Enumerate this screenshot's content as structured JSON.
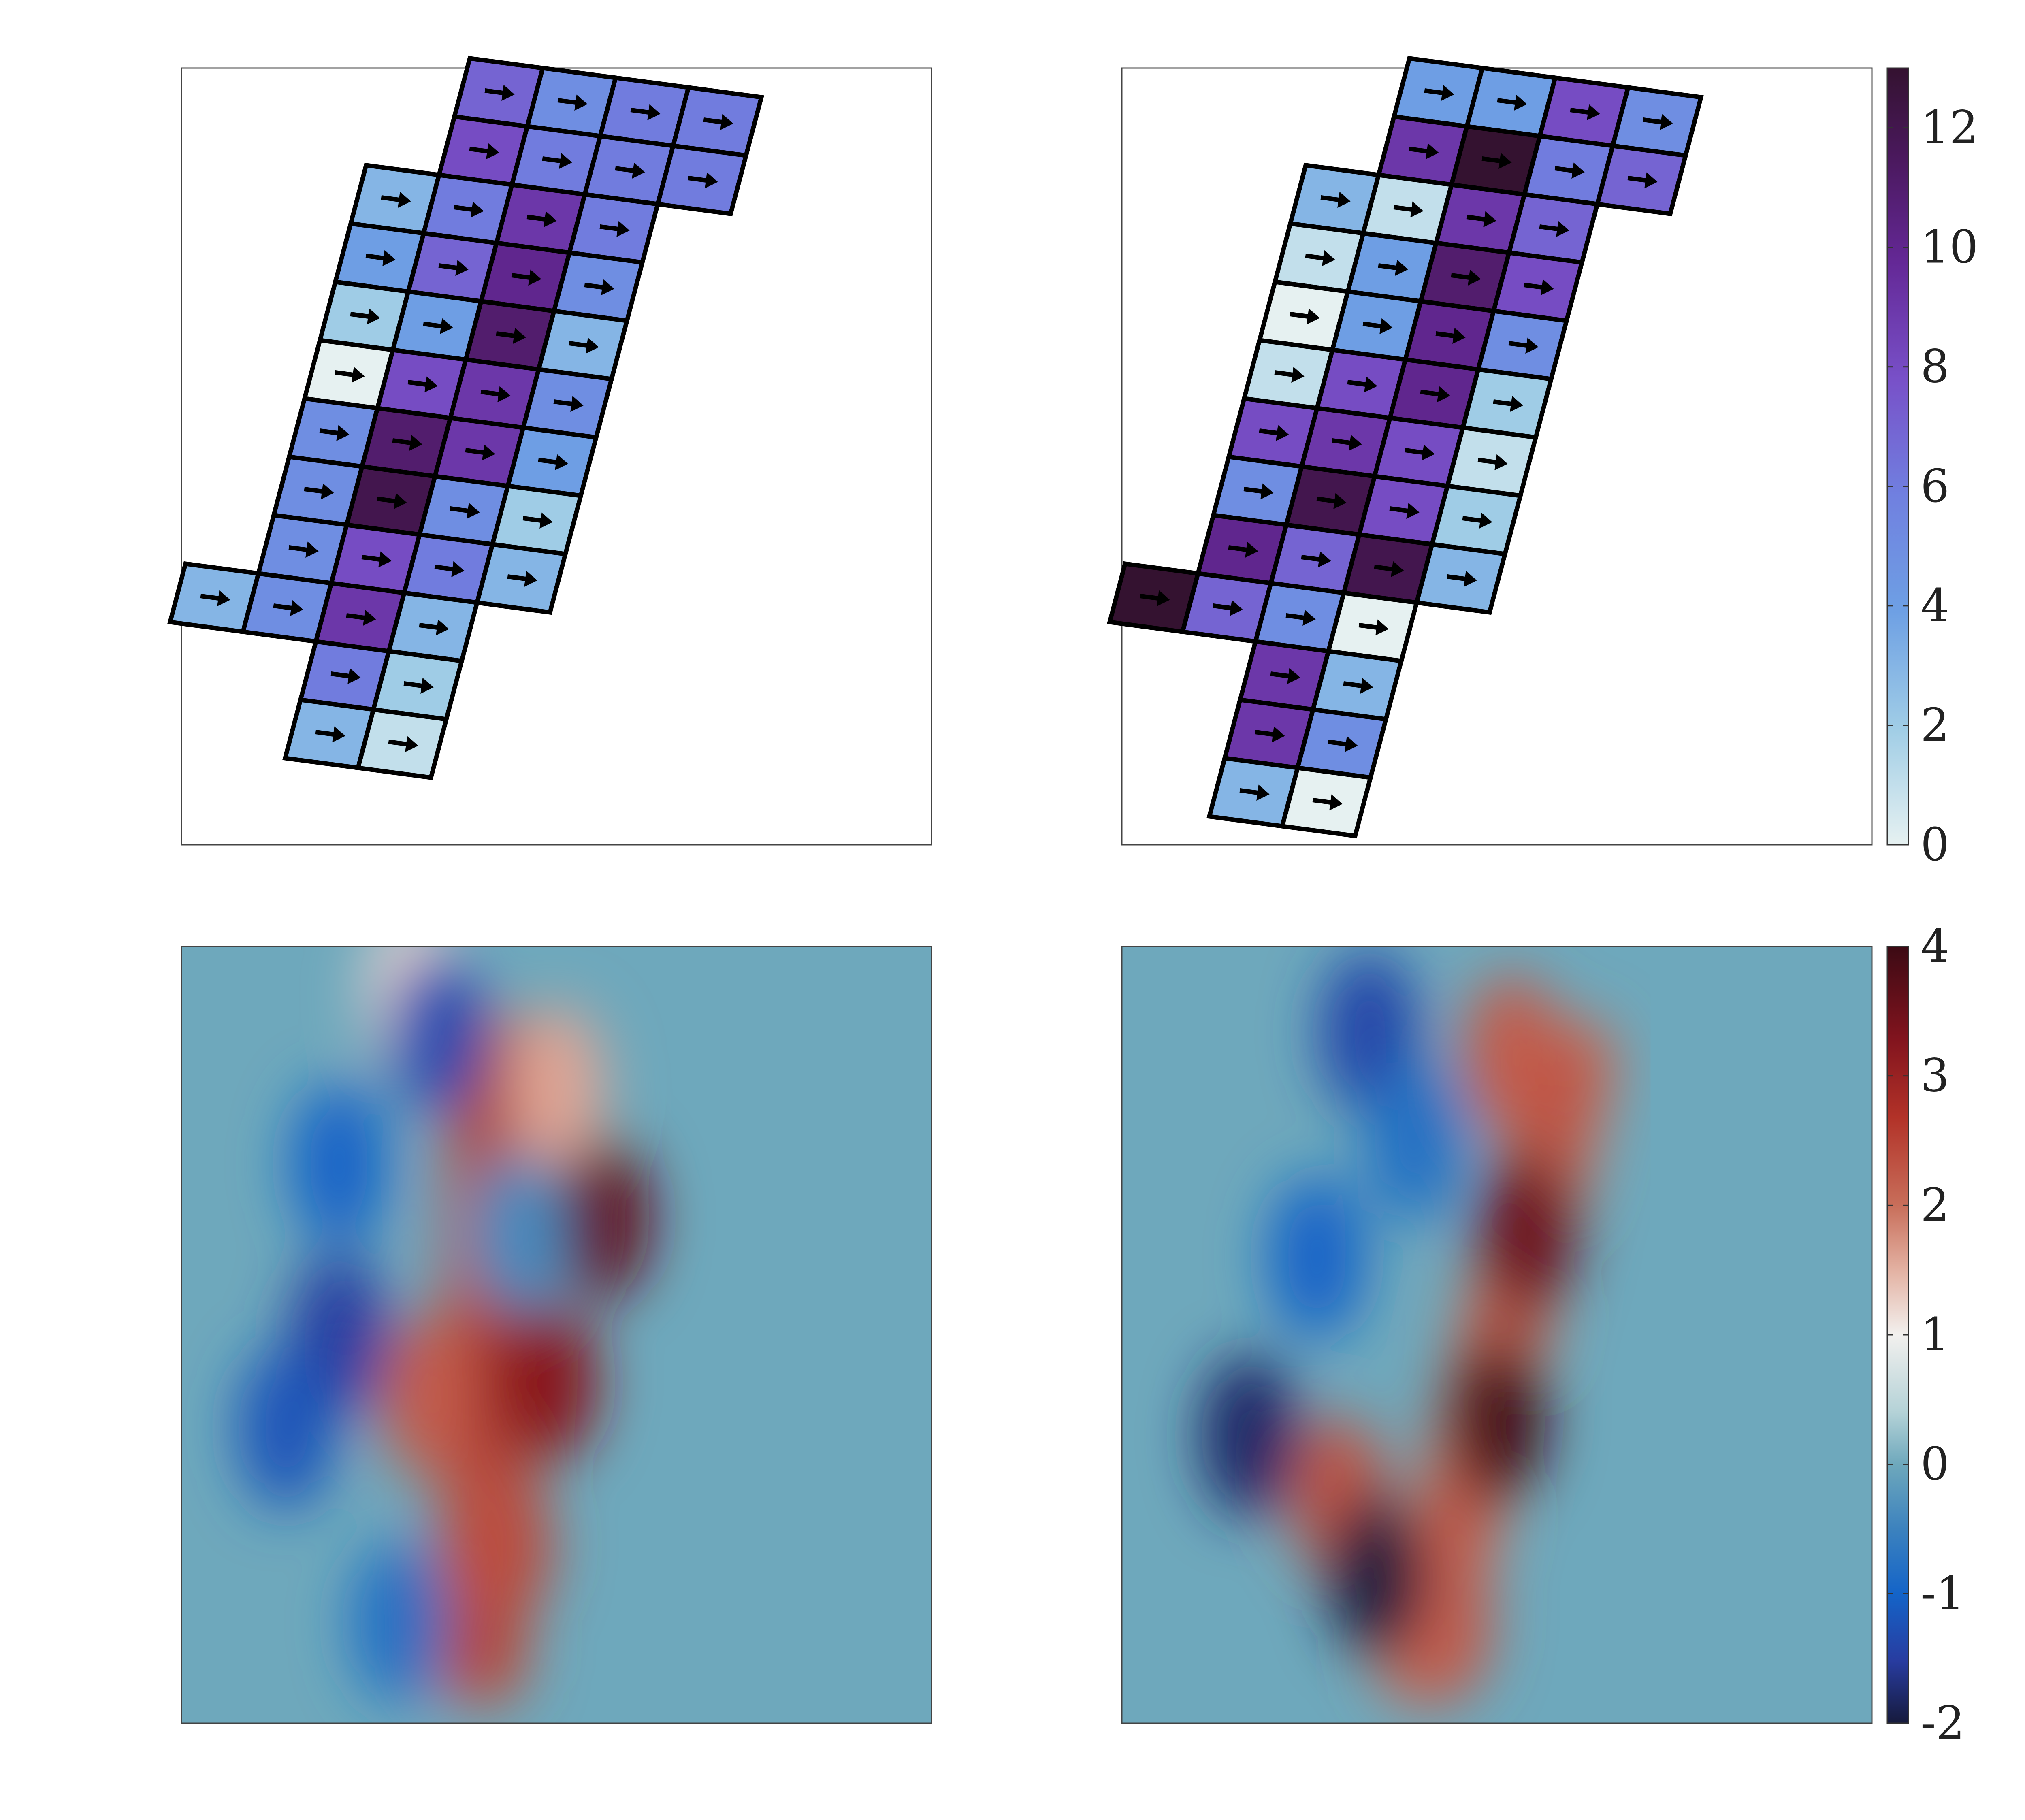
{
  "chart_data": [
    {
      "type": "heatmap",
      "grid": "tilted-cell-map",
      "colormap": "dense",
      "clim": [
        0,
        13
      ],
      "cell_marker": "arrow-right-icon",
      "rows": [
        [
          null,
          null,
          7,
          5,
          6,
          6
        ],
        [
          null,
          null,
          8,
          6,
          6,
          6
        ],
        [
          null,
          3,
          6,
          9,
          6
        ],
        [
          null,
          4,
          7,
          10,
          5
        ],
        [
          null,
          2,
          4,
          11,
          3
        ],
        [
          null,
          0,
          8,
          9,
          5
        ],
        [
          null,
          5,
          11,
          9,
          4
        ],
        [
          null,
          5,
          12,
          5,
          2
        ],
        [
          null,
          5,
          8,
          6,
          3
        ],
        [
          3,
          5,
          9,
          3
        ],
        [
          null,
          null,
          6,
          2
        ],
        [
          null,
          null,
          3,
          1
        ]
      ]
    },
    {
      "type": "heatmap",
      "grid": "tilted-cell-map",
      "colormap": "dense",
      "clim": [
        0,
        13
      ],
      "cell_marker": "arrow-right-icon",
      "rows": [
        [
          null,
          null,
          4,
          4,
          8,
          5
        ],
        [
          null,
          null,
          9,
          13,
          6,
          7
        ],
        [
          null,
          3,
          1,
          9,
          7
        ],
        [
          null,
          1,
          4,
          11,
          8
        ],
        [
          null,
          0,
          4,
          10,
          5
        ],
        [
          null,
          1,
          8,
          10,
          2
        ],
        [
          null,
          8,
          9,
          8,
          1
        ],
        [
          null,
          5,
          12,
          8,
          2
        ],
        [
          null,
          10,
          7,
          12,
          3
        ],
        [
          13,
          7,
          5,
          0
        ],
        [
          null,
          null,
          9,
          3
        ],
        [
          null,
          null,
          9,
          5
        ],
        [
          null,
          null,
          3,
          0
        ]
      ],
      "colorbar": {
        "ticks": [
          0,
          2,
          4,
          6,
          8,
          10,
          12
        ],
        "range": [
          0,
          13
        ]
      }
    },
    {
      "type": "heatmap",
      "field": "contour",
      "colormap": "balance",
      "clim": [
        -2,
        4
      ],
      "background_value": 0,
      "features": [
        {
          "kind": "ridge",
          "from": [
            0.42,
            0.15
          ],
          "to": [
            0.4,
            0.92
          ],
          "value": 2.3
        },
        {
          "kind": "blob",
          "at": [
            0.56,
            0.35
          ],
          "value": 3.6
        },
        {
          "kind": "blob",
          "at": [
            0.49,
            0.56
          ],
          "value": 3.2
        },
        {
          "kind": "blob",
          "at": [
            0.31,
            0.06
          ],
          "value": 1.2
        },
        {
          "kind": "blob",
          "at": [
            0.33,
            0.58
          ],
          "value": 2.2
        },
        {
          "kind": "blob",
          "at": [
            0.43,
            0.77
          ],
          "value": 2.4
        },
        {
          "kind": "blob",
          "at": [
            0.5,
            0.18
          ],
          "value": 1.6
        },
        {
          "kind": "blob",
          "at": [
            0.34,
            0.11
          ],
          "value": -1.3
        },
        {
          "kind": "blob",
          "at": [
            0.21,
            0.28
          ],
          "value": -1.0
        },
        {
          "kind": "blob",
          "at": [
            0.21,
            0.5
          ],
          "value": -1.5
        },
        {
          "kind": "blob",
          "at": [
            0.14,
            0.62
          ],
          "value": -1.2
        },
        {
          "kind": "blob",
          "at": [
            0.29,
            0.87
          ],
          "value": -0.8
        },
        {
          "kind": "blob",
          "at": [
            0.45,
            0.37
          ],
          "value": -0.4
        }
      ]
    },
    {
      "type": "heatmap",
      "field": "contour",
      "colormap": "balance",
      "clim": [
        -2,
        4
      ],
      "background_value": 0,
      "features": [
        {
          "kind": "ridge",
          "from": [
            0.6,
            0.15
          ],
          "to": [
            0.4,
            0.92
          ],
          "value": 2.0
        },
        {
          "kind": "blob",
          "at": [
            0.54,
            0.37
          ],
          "value": 3.5
        },
        {
          "kind": "blob",
          "at": [
            0.5,
            0.61
          ],
          "value": 3.9
        },
        {
          "kind": "blob",
          "at": [
            0.52,
            0.14
          ],
          "value": 2.2
        },
        {
          "kind": "blob",
          "at": [
            0.29,
            0.71
          ],
          "value": 2.3
        },
        {
          "kind": "blob",
          "at": [
            0.43,
            0.87
          ],
          "value": 2.2
        },
        {
          "kind": "blob",
          "at": [
            0.33,
            0.11
          ],
          "value": -1.4
        },
        {
          "kind": "blob",
          "at": [
            0.26,
            0.4
          ],
          "value": -1.0
        },
        {
          "kind": "blob",
          "at": [
            0.17,
            0.63
          ],
          "value": -1.8
        },
        {
          "kind": "blob",
          "at": [
            0.34,
            0.81
          ],
          "value": -2.0
        },
        {
          "kind": "blob",
          "at": [
            0.39,
            0.25
          ],
          "value": -0.8
        }
      ],
      "colorbar": {
        "ticks": [
          -2,
          -1,
          0,
          1,
          2,
          3,
          4
        ],
        "range": [
          -2,
          4
        ]
      }
    }
  ]
}
